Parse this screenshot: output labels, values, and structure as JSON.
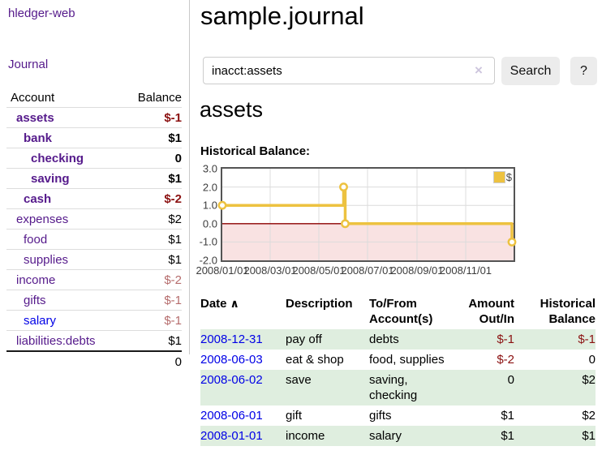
{
  "app": {
    "brand": "hledger-web",
    "nav_journal": "Journal"
  },
  "sidebar": {
    "header": {
      "account": "Account",
      "balance": "Balance"
    },
    "accounts": [
      {
        "name": "assets",
        "balance": "$-1",
        "level": 1,
        "emph": true,
        "name_color": "purple",
        "balance_color": "red"
      },
      {
        "name": "bank",
        "balance": "$1",
        "level": 2,
        "emph": true,
        "name_color": "purple",
        "balance_color": "black"
      },
      {
        "name": "checking",
        "balance": "0",
        "level": 3,
        "emph": true,
        "name_color": "purple",
        "balance_color": "black"
      },
      {
        "name": "saving",
        "balance": "$1",
        "level": 3,
        "emph": true,
        "name_color": "purple",
        "balance_color": "black"
      },
      {
        "name": "cash",
        "balance": "$-2",
        "level": 2,
        "emph": true,
        "name_color": "purple",
        "balance_color": "red"
      },
      {
        "name": "expenses",
        "balance": "$2",
        "level": 1,
        "emph": false,
        "name_color": "purple",
        "balance_color": "black"
      },
      {
        "name": "food",
        "balance": "$1",
        "level": 2,
        "emph": false,
        "name_color": "purple",
        "balance_color": "black"
      },
      {
        "name": "supplies",
        "balance": "$1",
        "level": 2,
        "emph": false,
        "name_color": "purple",
        "balance_color": "black"
      },
      {
        "name": "income",
        "balance": "$-2",
        "level": 1,
        "emph": false,
        "name_color": "purple",
        "balance_color": "rose"
      },
      {
        "name": "gifts",
        "balance": "$-1",
        "level": 2,
        "emph": false,
        "name_color": "purple",
        "balance_color": "rose"
      },
      {
        "name": "salary",
        "balance": "$-1",
        "level": 2,
        "emph": false,
        "name_color": "blue",
        "balance_color": "rose"
      },
      {
        "name": "liabilities:debts",
        "balance": "$1",
        "level": 1,
        "emph": false,
        "name_color": "purple",
        "balance_color": "black"
      }
    ],
    "total": "0"
  },
  "main": {
    "title": "sample.journal",
    "search": {
      "value": "inacct:assets",
      "clear_icon": "×",
      "button": "Search",
      "help_button": "?"
    },
    "account_heading": "assets",
    "chart_label": "Historical Balance:"
  },
  "chart_data": {
    "type": "line",
    "title": "Historical Balance",
    "step": true,
    "x": [
      "2008-01-01",
      "2008-06-01",
      "2008-06-03",
      "2008-12-31"
    ],
    "values": [
      1,
      2,
      0,
      -1
    ],
    "series_label": "$",
    "x_tick_labels": [
      "2008/01/01",
      "2008/03/01",
      "2008/05/01",
      "2008/07/01",
      "2008/09/01",
      "2008/11/01"
    ],
    "y_tick_labels": [
      "3.0",
      "2.0",
      "1.0",
      "0.0",
      "-1.0",
      "-2.0"
    ],
    "y_tick_values": [
      3,
      2,
      1,
      0,
      -1,
      -2
    ],
    "ylim": [
      -2,
      3
    ],
    "xlim": [
      "2008-01-01",
      "2008-12-31"
    ],
    "grid": true,
    "legend_position": "top-right",
    "line_color": "#edc240",
    "marker_fill": "#ffffff",
    "zero_line_color": "#8b0000",
    "negative_region_color": "#f9e2e2",
    "gridline_color": "#dcdcdc"
  },
  "table": {
    "headers": {
      "date": "Date",
      "sort_icon": "∧",
      "description": "Description",
      "to_from": "To/From\nAccount(s)",
      "amount": "Amount\nOut/In",
      "balance": "Historical\nBalance"
    },
    "rows": [
      {
        "date": "2008-12-31",
        "description": "pay off",
        "to_from": "debts",
        "amount": "$-1",
        "balance": "$-1",
        "amount_neg": true,
        "balance_neg": true,
        "stripe": true
      },
      {
        "date": "2008-06-03",
        "description": "eat & shop",
        "to_from": "food, supplies",
        "amount": "$-2",
        "balance": "0",
        "amount_neg": true,
        "balance_neg": false,
        "stripe": false
      },
      {
        "date": "2008-06-02",
        "description": "save",
        "to_from": "saving,\nchecking",
        "amount": "0",
        "balance": "$2",
        "amount_neg": false,
        "balance_neg": false,
        "stripe": true
      },
      {
        "date": "2008-06-01",
        "description": "gift",
        "to_from": "gifts",
        "amount": "$1",
        "balance": "$2",
        "amount_neg": false,
        "balance_neg": false,
        "stripe": false
      },
      {
        "date": "2008-01-01",
        "description": "income",
        "to_from": "salary",
        "amount": "$1",
        "balance": "$1",
        "amount_neg": false,
        "balance_neg": false,
        "stripe": true
      }
    ]
  }
}
